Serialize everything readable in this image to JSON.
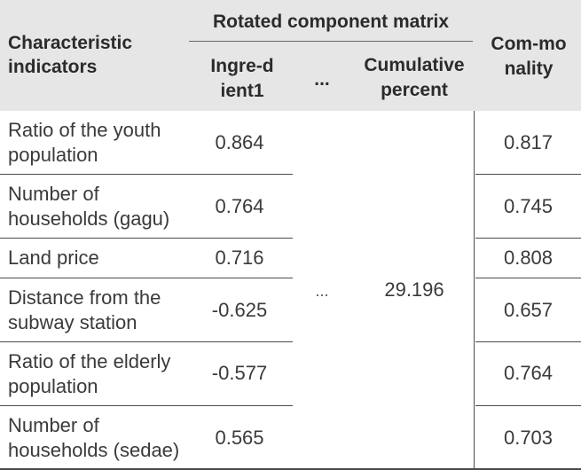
{
  "table": {
    "headers": {
      "characteristic": "Characteristic indicators",
      "group": "Rotated component matrix",
      "ingredient": "Ingre-dient1",
      "ellipsis": "...",
      "cumulative": "Cumulative percent",
      "commonality": "Com-monality"
    },
    "rows": [
      {
        "indicator": "Ratio of the youth population",
        "ingredient": "0.864",
        "commonality": "0.817"
      },
      {
        "indicator": "Number of households (gagu)",
        "ingredient": "0.764",
        "commonality": "0.745"
      },
      {
        "indicator": "Land price",
        "ingredient": "0.716",
        "commonality": "0.808"
      },
      {
        "indicator": "Distance from the subway station",
        "ingredient": "-0.625",
        "commonality": "0.657"
      },
      {
        "indicator": "Ratio of the elderly population",
        "ingredient": "-0.577",
        "commonality": "0.764"
      },
      {
        "indicator": "Number of households (sedae)",
        "ingredient": "0.565",
        "commonality": "0.703"
      }
    ],
    "merged": {
      "ellipsis": "...",
      "cumulative": "29.196"
    }
  }
}
